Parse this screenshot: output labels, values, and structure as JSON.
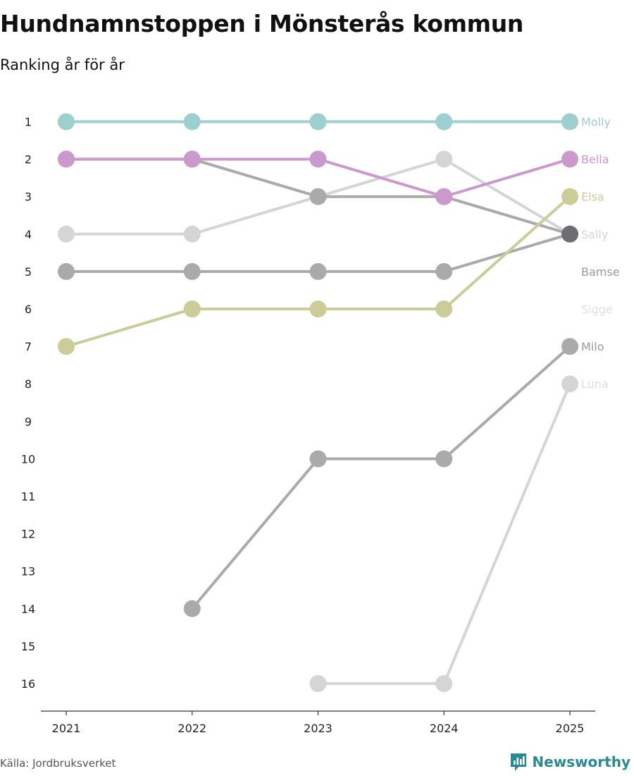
{
  "title": "Hundnamnstoppen i Mönsterås kommun",
  "subtitle": "Ranking år för år",
  "source": "Källa: Jordbruksverket",
  "brand": "Newsworthy",
  "chart_data": {
    "type": "line",
    "title": "Hundnamnstoppen i Mönsterås kommun",
    "subtitle": "Ranking år för år",
    "xlabel": "",
    "ylabel": "",
    "x": [
      "2021",
      "2022",
      "2023",
      "2024",
      "2025"
    ],
    "y_ticks": [
      1,
      2,
      3,
      4,
      5,
      6,
      7,
      8,
      9,
      10,
      11,
      12,
      13,
      14,
      15,
      16
    ],
    "ylim": [
      1,
      16
    ],
    "y_inverted": true,
    "series": [
      {
        "name": "Molly",
        "color": "#9dcfce",
        "values": [
          1,
          1,
          1,
          1,
          1
        ]
      },
      {
        "name": "Bella",
        "color": "#cc99cc",
        "values": [
          2,
          2,
          2,
          3,
          2
        ]
      },
      {
        "name": "Elsa",
        "color": "#cccc99",
        "values": [
          7,
          6,
          6,
          6,
          3
        ]
      },
      {
        "name": "Sally",
        "color": "#6d6d73",
        "line_color": "#aaaaaa",
        "values": [
          2,
          2,
          3,
          3,
          4
        ]
      },
      {
        "name": "Bamse",
        "color": "#aaaaaa",
        "label_color": "#999999",
        "values": [
          5,
          5,
          5,
          5,
          4
        ]
      },
      {
        "name": "Sigge",
        "color": "#d5d5d5",
        "values": [
          4,
          4,
          3,
          2,
          4
        ]
      },
      {
        "name": "Milo",
        "color": "#aaaaaa",
        "label_color": "#999999",
        "values": [
          null,
          14,
          10,
          10,
          7
        ]
      },
      {
        "name": "Luna",
        "color": "#d5d5d5",
        "values": [
          null,
          null,
          16,
          16,
          8
        ]
      }
    ],
    "labels": [
      {
        "name": "Molly",
        "rank": 1,
        "color": "#9dcfce"
      },
      {
        "name": "Bella",
        "rank": 2,
        "color": "#cc99cc"
      },
      {
        "name": "Elsa",
        "rank": 3,
        "color": "#cccc99"
      },
      {
        "name": "Sally",
        "rank": 4,
        "color": "#d5d5d5"
      },
      {
        "name": "Bamse",
        "rank": 5,
        "color": "#999999"
      },
      {
        "name": "Sigge",
        "rank": 6,
        "color": "#e0e0e0"
      },
      {
        "name": "Milo",
        "rank": 7,
        "color": "#999999"
      },
      {
        "name": "Luna",
        "rank": 8,
        "color": "#dddddd"
      }
    ]
  }
}
